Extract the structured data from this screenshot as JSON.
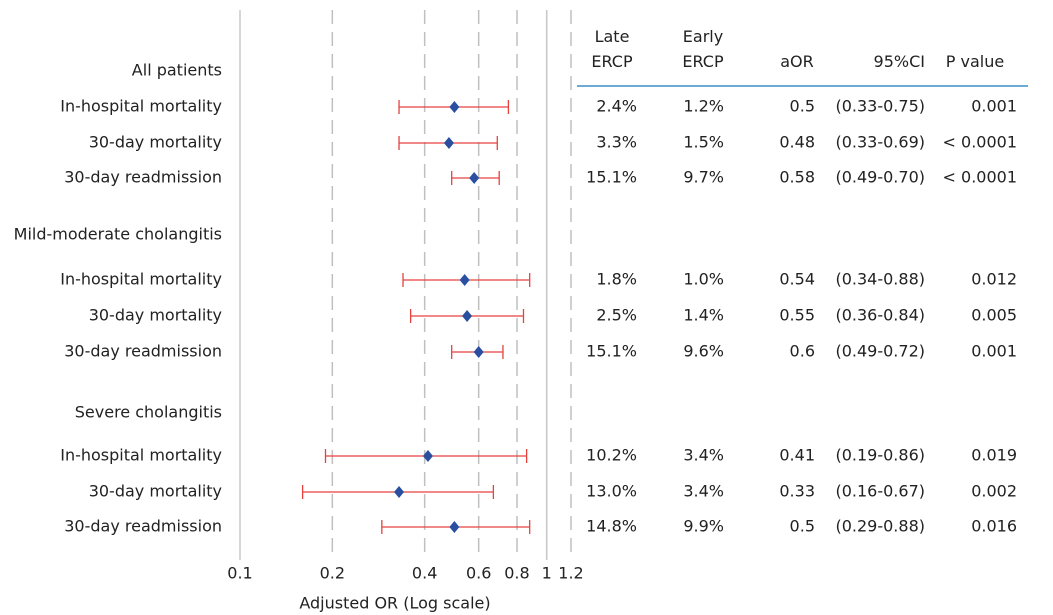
{
  "chart_data": {
    "type": "forest",
    "xlabel": "Adjusted OR (Log scale)",
    "log_scale": true,
    "xlim": [
      0.1,
      1.2
    ],
    "xticks": [
      0.1,
      0.2,
      0.4,
      0.6,
      0.8,
      1,
      1.2
    ],
    "reference_line": 1,
    "point_color": "#2a4fa0",
    "ci_color": "#e5423d",
    "columns": [
      "Late ERCP",
      "Early ERCP",
      "aOR",
      "95%CI",
      "P value"
    ],
    "groups": [
      {
        "name": "All patients",
        "rows": [
          {
            "label": "In-hospital mortality",
            "late": "2.4%",
            "early": "1.2%",
            "aor": 0.5,
            "ci": "(0.33-0.75)",
            "ci_low": 0.33,
            "ci_high": 0.75,
            "p": "0.001"
          },
          {
            "label": "30-day mortality",
            "late": "3.3%",
            "early": "1.5%",
            "aor": 0.48,
            "ci": "(0.33-0.69)",
            "ci_low": 0.33,
            "ci_high": 0.69,
            "p": "< 0.0001"
          },
          {
            "label": "30-day readmission",
            "late": "15.1%",
            "early": "9.7%",
            "aor": 0.58,
            "ci": "(0.49-0.70)",
            "ci_low": 0.49,
            "ci_high": 0.7,
            "p": "< 0.0001"
          }
        ]
      },
      {
        "name": "Mild-moderate cholangitis",
        "rows": [
          {
            "label": "In-hospital mortality",
            "late": "1.8%",
            "early": "1.0%",
            "aor": 0.54,
            "ci": "(0.34-0.88)",
            "ci_low": 0.34,
            "ci_high": 0.88,
            "p": "0.012"
          },
          {
            "label": "30-day mortality",
            "late": "2.5%",
            "early": "1.4%",
            "aor": 0.55,
            "ci": "(0.36-0.84)",
            "ci_low": 0.36,
            "ci_high": 0.84,
            "p": "0.005"
          },
          {
            "label": "30-day readmission",
            "late": "15.1%",
            "early": "9.6%",
            "aor": 0.6,
            "ci": "(0.49-0.72)",
            "ci_low": 0.49,
            "ci_high": 0.72,
            "p": "0.001"
          }
        ]
      },
      {
        "name": "Severe cholangitis",
        "rows": [
          {
            "label": "In-hospital mortality",
            "late": "10.2%",
            "early": "3.4%",
            "aor": 0.41,
            "ci": "(0.19-0.86)",
            "ci_low": 0.19,
            "ci_high": 0.86,
            "p": "0.019"
          },
          {
            "label": "30-day mortality",
            "late": "13.0%",
            "early": "3.4%",
            "aor": 0.33,
            "ci": "(0.16-0.67)",
            "ci_low": 0.16,
            "ci_high": 0.67,
            "p": "0.002"
          },
          {
            "label": "30-day readmission",
            "late": "14.8%",
            "early": "9.9%",
            "aor": 0.5,
            "ci": "(0.29-0.88)",
            "ci_low": 0.29,
            "ci_high": 0.88,
            "p": "0.016"
          }
        ]
      }
    ]
  }
}
